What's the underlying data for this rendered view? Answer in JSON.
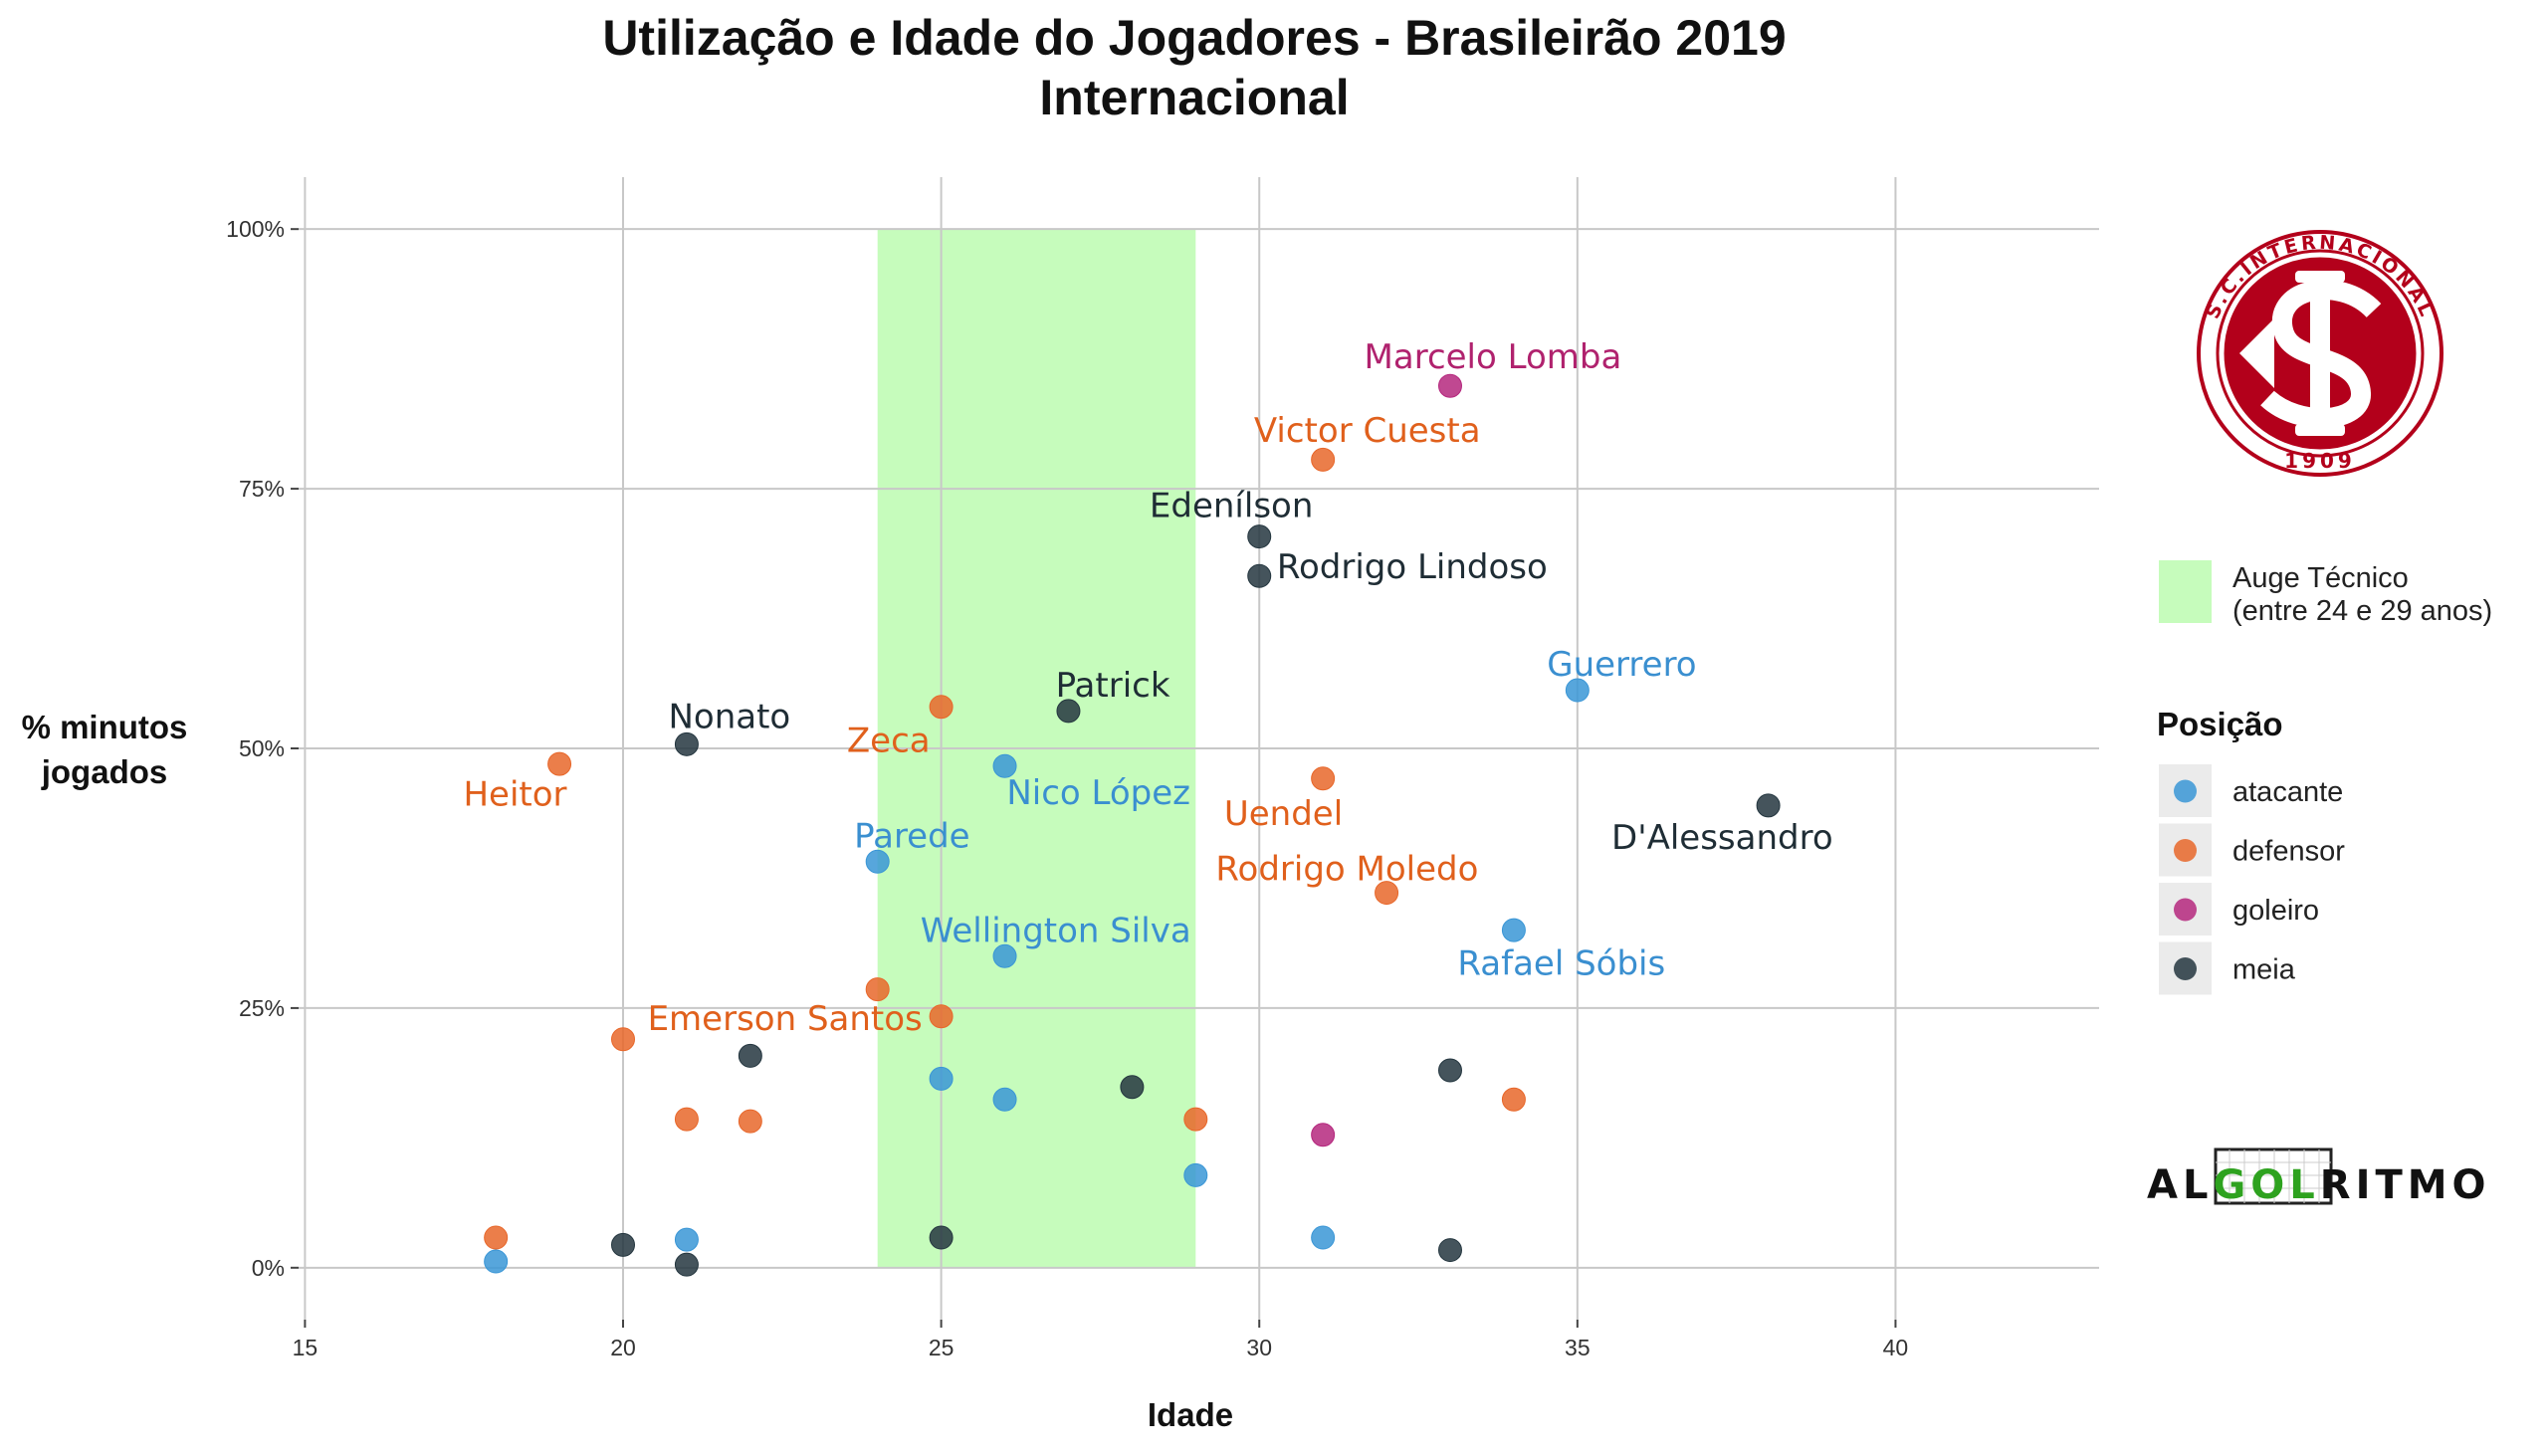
{
  "chart_data": {
    "type": "scatter",
    "title": "Utilização e Idade do Jogadores - Brasileirão 2019",
    "subtitle": "Internacional",
    "xlabel": "Idade",
    "ylabel_lines": [
      "% minutos",
      "jogados"
    ],
    "xlim": [
      14.9,
      43.2
    ],
    "ylim": [
      -5,
      105
    ],
    "x_ticks": [
      15,
      20,
      25,
      30,
      35,
      40
    ],
    "x_tick_labels": [
      "15",
      "20",
      "25",
      "30",
      "35",
      "40"
    ],
    "y_ticks": [
      0,
      25,
      50,
      75,
      100
    ],
    "y_tick_labels": [
      "0%",
      "25%",
      "50%",
      "75%",
      "100%"
    ],
    "grid": true,
    "highlight_band": {
      "x": [
        24,
        29
      ],
      "label_lines": [
        "Auge Técnico",
        "(entre 24 e 29 anos)"
      ],
      "color": "#c6fcbc"
    },
    "legend": {
      "title": "Posição",
      "placement": "right",
      "entries": [
        {
          "name": "atacante",
          "color": "#3a96d6"
        },
        {
          "name": "defensor",
          "color": "#e8672a"
        },
        {
          "name": "goleiro",
          "color": "#b5287e"
        },
        {
          "name": "meia",
          "color": "#24363f"
        }
      ]
    },
    "points": [
      {
        "x": 18,
        "y": 0.6,
        "pos": "atacante"
      },
      {
        "x": 18,
        "y": 2.9,
        "pos": "defensor"
      },
      {
        "x": 19,
        "y": 48.5,
        "pos": "defensor",
        "label": "Heitor"
      },
      {
        "x": 20,
        "y": 22.0,
        "pos": "defensor"
      },
      {
        "x": 20,
        "y": 2.2,
        "pos": "meia"
      },
      {
        "x": 21,
        "y": 50.4,
        "pos": "meia",
        "label": "Nonato"
      },
      {
        "x": 21,
        "y": 14.3,
        "pos": "defensor"
      },
      {
        "x": 21,
        "y": 2.7,
        "pos": "atacante"
      },
      {
        "x": 21,
        "y": 0.3,
        "pos": "meia"
      },
      {
        "x": 22,
        "y": 20.4,
        "pos": "meia"
      },
      {
        "x": 22,
        "y": 14.1,
        "pos": "defensor"
      },
      {
        "x": 24,
        "y": 39.1,
        "pos": "atacante",
        "label": "Parede"
      },
      {
        "x": 24,
        "y": 26.8,
        "pos": "defensor"
      },
      {
        "x": 25,
        "y": 54.0,
        "pos": "defensor",
        "label": "Zeca"
      },
      {
        "x": 25,
        "y": 24.2,
        "pos": "defensor",
        "label": "Emerson Santos"
      },
      {
        "x": 25,
        "y": 18.2,
        "pos": "atacante"
      },
      {
        "x": 25,
        "y": 2.9,
        "pos": "meia"
      },
      {
        "x": 26,
        "y": 48.3,
        "pos": "atacante",
        "label": "Nico López"
      },
      {
        "x": 26,
        "y": 30.0,
        "pos": "atacante",
        "label": "Wellington Silva"
      },
      {
        "x": 26,
        "y": 16.2,
        "pos": "atacante"
      },
      {
        "x": 27,
        "y": 53.6,
        "pos": "meia",
        "label": "Patrick"
      },
      {
        "x": 28,
        "y": 17.4,
        "pos": "meia"
      },
      {
        "x": 29,
        "y": 14.3,
        "pos": "defensor"
      },
      {
        "x": 29,
        "y": 8.9,
        "pos": "atacante"
      },
      {
        "x": 30,
        "y": 70.4,
        "pos": "meia",
        "label": "Edenílson"
      },
      {
        "x": 30,
        "y": 66.6,
        "pos": "meia",
        "label": "Rodrigo Lindoso"
      },
      {
        "x": 31,
        "y": 77.8,
        "pos": "defensor",
        "label": "Victor Cuesta"
      },
      {
        "x": 31,
        "y": 47.1,
        "pos": "defensor",
        "label": "Uendel"
      },
      {
        "x": 31,
        "y": 12.8,
        "pos": "goleiro"
      },
      {
        "x": 31,
        "y": 2.9,
        "pos": "atacante"
      },
      {
        "x": 32,
        "y": 36.1,
        "pos": "defensor",
        "label": "Rodrigo Moledo"
      },
      {
        "x": 33,
        "y": 84.9,
        "pos": "goleiro",
        "label": "Marcelo Lomba"
      },
      {
        "x": 33,
        "y": 19.0,
        "pos": "meia"
      },
      {
        "x": 33,
        "y": 1.7,
        "pos": "meia"
      },
      {
        "x": 34,
        "y": 32.5,
        "pos": "atacante",
        "label": "Rafael Sóbis"
      },
      {
        "x": 34,
        "y": 16.2,
        "pos": "defensor"
      },
      {
        "x": 35,
        "y": 55.6,
        "pos": "atacante",
        "label": "Guerrero"
      },
      {
        "x": 38,
        "y": 44.5,
        "pos": "meia",
        "label": "D'Alessandro"
      }
    ]
  },
  "logos": {
    "club": {
      "ring_text": "S.C.INTERNACIONAL",
      "year": "1909",
      "color": "#b3001b"
    },
    "brand": {
      "parts": [
        "AL",
        "GOL",
        "RITMO"
      ],
      "accent": "#2ea21f"
    }
  }
}
